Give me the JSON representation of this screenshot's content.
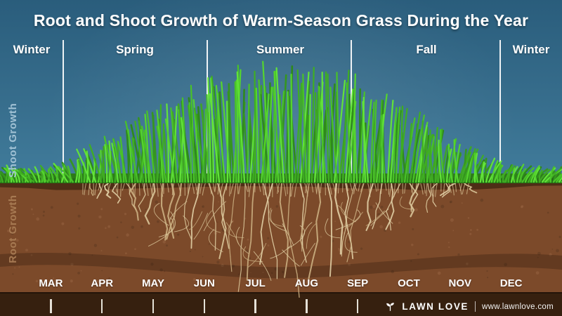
{
  "title": "Root and Shoot Growth of Warm-Season Grass During the Year",
  "seasons": [
    "Winter",
    "Spring",
    "Summer",
    "Fall",
    "Winter"
  ],
  "axis_left": {
    "shoot": "Shoot Growth",
    "root": "Root Growth"
  },
  "months": [
    "MAR",
    "APR",
    "MAY",
    "JUN",
    "JUL",
    "AUG",
    "SEP",
    "OCT",
    "NOV",
    "DEC"
  ],
  "footer": {
    "brand": "LAWN LOVE",
    "url": "www.lawnlove.com"
  },
  "colors": {
    "sky": "#386f8e",
    "grass_bright": "#55d42e",
    "grass_dark": "#2e8a1b",
    "soil_main": "#7c4a2a",
    "soil_band": "#4c2b15",
    "soil_bottom_strip": "#36200f",
    "root": "#d8c395",
    "text": "#ffffff",
    "shoot_label": "#a9c8da",
    "root_label": "#aa7d55"
  }
}
